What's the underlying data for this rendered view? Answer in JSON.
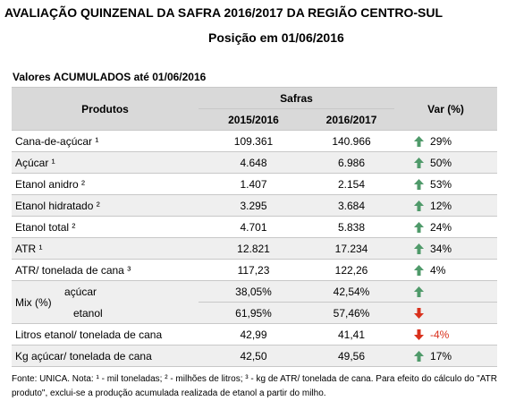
{
  "header": {
    "title": "AVALIAÇÃO QUINZENAL DA SAFRA 2016/2017 DA REGIÃO CENTRO-SUL",
    "subtitle": "Posição em 01/06/2016"
  },
  "table": {
    "caption": "Valores ACUMULADOS até 01/06/2016",
    "headers": {
      "products": "Produtos",
      "safras": "Safras",
      "years": [
        "2015/2016",
        "2016/2017"
      ],
      "var": "Var (%)"
    },
    "rows": [
      [
        "Cana-de-açúcar ¹",
        "109.361",
        "140.966",
        "29%"
      ],
      [
        "Açúcar ¹",
        "4.648",
        "6.986",
        "50%"
      ],
      [
        "Etanol anidro ²",
        "1.407",
        "2.154",
        "53%"
      ],
      [
        "Etanol hidratado ²",
        "3.295",
        "3.684",
        "12%"
      ],
      [
        "Etanol total ²",
        "4.701",
        "5.838",
        "24%"
      ],
      [
        "ATR ¹",
        "12.821",
        "17.234",
        "34%"
      ],
      [
        "ATR/ tonelada de cana ³",
        "117,23",
        "122,26",
        "4%"
      ],
      {
        "label": "Mix (%)",
        "sub": [
          [
            "açúcar",
            "38,05%",
            "42,54%"
          ],
          [
            "etanol",
            "61,95%",
            "57,46%"
          ]
        ]
      },
      [
        "Litros etanol/ tonelada de cana",
        "42,99",
        "41,41",
        "-4%"
      ],
      [
        "Kg açúcar/ tonelada de cana",
        "42,50",
        "49,56",
        "17%"
      ]
    ]
  },
  "footer": "Fonte: UNICA. Nota: ¹ - mil toneladas; ² - milhões de litros; ³ - kg de ATR/ tonelada de cana. Para efeito do cálculo do \"ATR produto\", exclui-se a produção acumulada realizada de etanol a partir do milho."
}
